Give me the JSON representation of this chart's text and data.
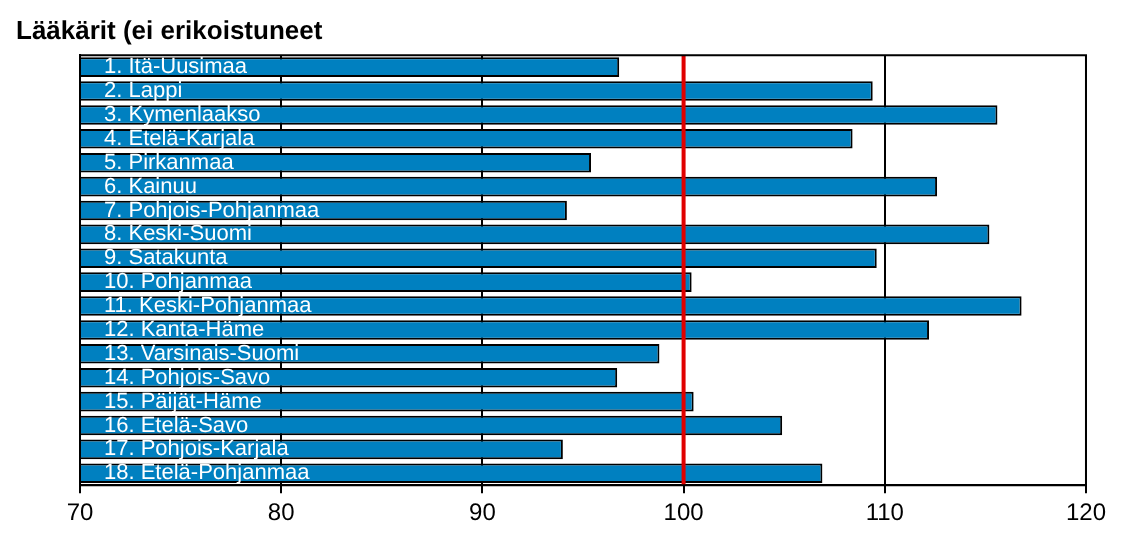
{
  "chart_data": {
    "type": "bar",
    "orientation": "horizontal",
    "title": "Lääkärit (ei erikoistuneet",
    "categories": [
      "1. Itä-Uusimaa",
      "2. Lappi",
      "3. Kymenlaakso",
      "4. Etelä-Karjala",
      "5. Pirkanmaa",
      "6. Kainuu",
      "7. Pohjois-Pohjanmaa",
      "8. Keski-Suomi",
      "9. Satakunta",
      "10. Pohjanmaa",
      "11. Keski-Pohjanmaa",
      "12. Kanta-Häme",
      "13. Varsinais-Suomi",
      "14. Pohjois-Savo",
      "15. Päijät-Häme",
      "16. Etelä-Savo",
      "17. Pohjois-Karjala",
      "18. Etelä-Pohjanmaa"
    ],
    "values": [
      96.8,
      109.4,
      115.6,
      108.4,
      95.4,
      112.6,
      94.2,
      115.2,
      109.6,
      100.4,
      116.8,
      112.2,
      98.8,
      96.7,
      100.5,
      104.9,
      94.0,
      106.9
    ],
    "color": "#0080c0",
    "xlim": [
      70,
      120
    ],
    "xticks": [
      70,
      80,
      90,
      100,
      110,
      120
    ],
    "grid": "x",
    "ref_lines": [
      {
        "axis": "x",
        "value": 100,
        "color": "#e00000"
      }
    ]
  }
}
